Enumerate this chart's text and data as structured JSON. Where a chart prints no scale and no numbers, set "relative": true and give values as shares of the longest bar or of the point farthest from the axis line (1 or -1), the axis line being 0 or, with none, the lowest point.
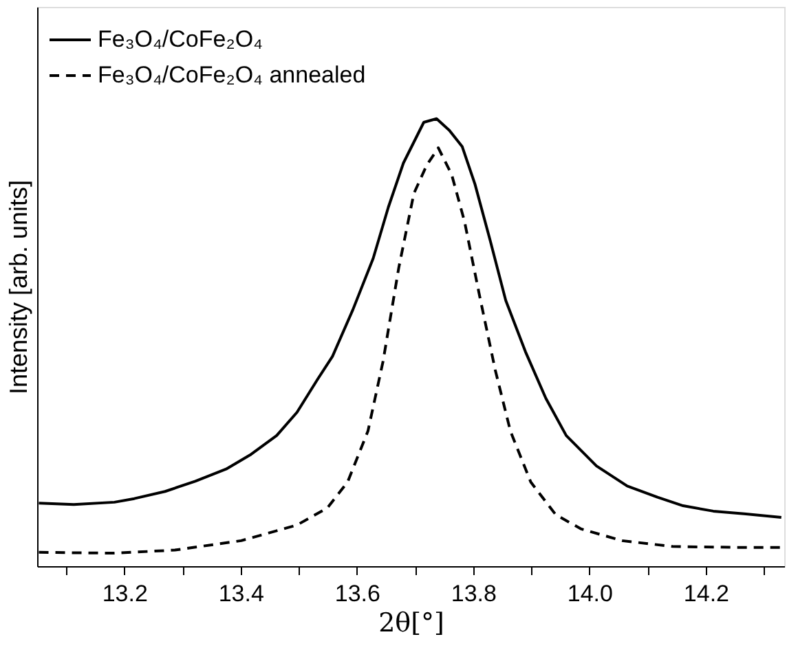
{
  "chart_data": {
    "type": "line",
    "relative": true,
    "xlabel": "2θ[°]",
    "ylabel": "Intensity [arb. units]",
    "xlim": [
      13.05,
      14.335
    ],
    "xticks": [
      {
        "value": 13.1,
        "label": null
      },
      13.2,
      {
        "value": 13.3,
        "label": null
      },
      13.4,
      {
        "value": 13.5,
        "label": null
      },
      13.6,
      {
        "value": 13.7,
        "label": null
      },
      13.8,
      {
        "value": 13.9,
        "label": null
      },
      {
        "value": 14.0,
        "label": "14.0"
      },
      {
        "value": 14.1,
        "label": null
      },
      14.2,
      {
        "value": 14.3,
        "label": null
      }
    ],
    "legend": "top left",
    "grid": false,
    "marker": "none",
    "series": [
      {
        "name": "Fe₃O₄/CoFe₂O₄",
        "color": "#000000",
        "line_style": "solid",
        "x": [
          13.053,
          13.113,
          13.183,
          13.217,
          13.27,
          13.322,
          13.375,
          13.418,
          13.462,
          13.497,
          13.532,
          13.558,
          13.593,
          13.628,
          13.654,
          13.68,
          13.715,
          13.737,
          13.759,
          13.781,
          13.803,
          13.829,
          13.856,
          13.89,
          13.925,
          13.96,
          14.012,
          14.065,
          14.117,
          14.161,
          14.213,
          14.266,
          14.33
        ],
        "values": [
          0.141,
          0.138,
          0.143,
          0.151,
          0.167,
          0.19,
          0.217,
          0.25,
          0.292,
          0.344,
          0.417,
          0.469,
          0.573,
          0.688,
          0.802,
          0.901,
          0.992,
          1.0,
          0.974,
          0.938,
          0.854,
          0.729,
          0.594,
          0.479,
          0.375,
          0.292,
          0.224,
          0.179,
          0.154,
          0.135,
          0.123,
          0.117,
          0.109
        ]
      },
      {
        "name": "Fe₃O₄/CoFe₂O₄ annealed",
        "color": "#000000",
        "line_style": "dashed",
        "x": [
          13.053,
          13.183,
          13.287,
          13.401,
          13.497,
          13.549,
          13.584,
          13.619,
          13.645,
          13.672,
          13.698,
          13.72,
          13.74,
          13.763,
          13.785,
          13.811,
          13.838,
          13.864,
          13.899,
          13.942,
          13.986,
          14.056,
          14.143,
          14.248,
          14.33
        ],
        "values": [
          0.031,
          0.029,
          0.036,
          0.057,
          0.092,
          0.13,
          0.188,
          0.302,
          0.458,
          0.667,
          0.833,
          0.896,
          0.935,
          0.875,
          0.771,
          0.604,
          0.438,
          0.302,
          0.188,
          0.115,
          0.083,
          0.057,
          0.044,
          0.042,
          0.042
        ]
      }
    ]
  }
}
